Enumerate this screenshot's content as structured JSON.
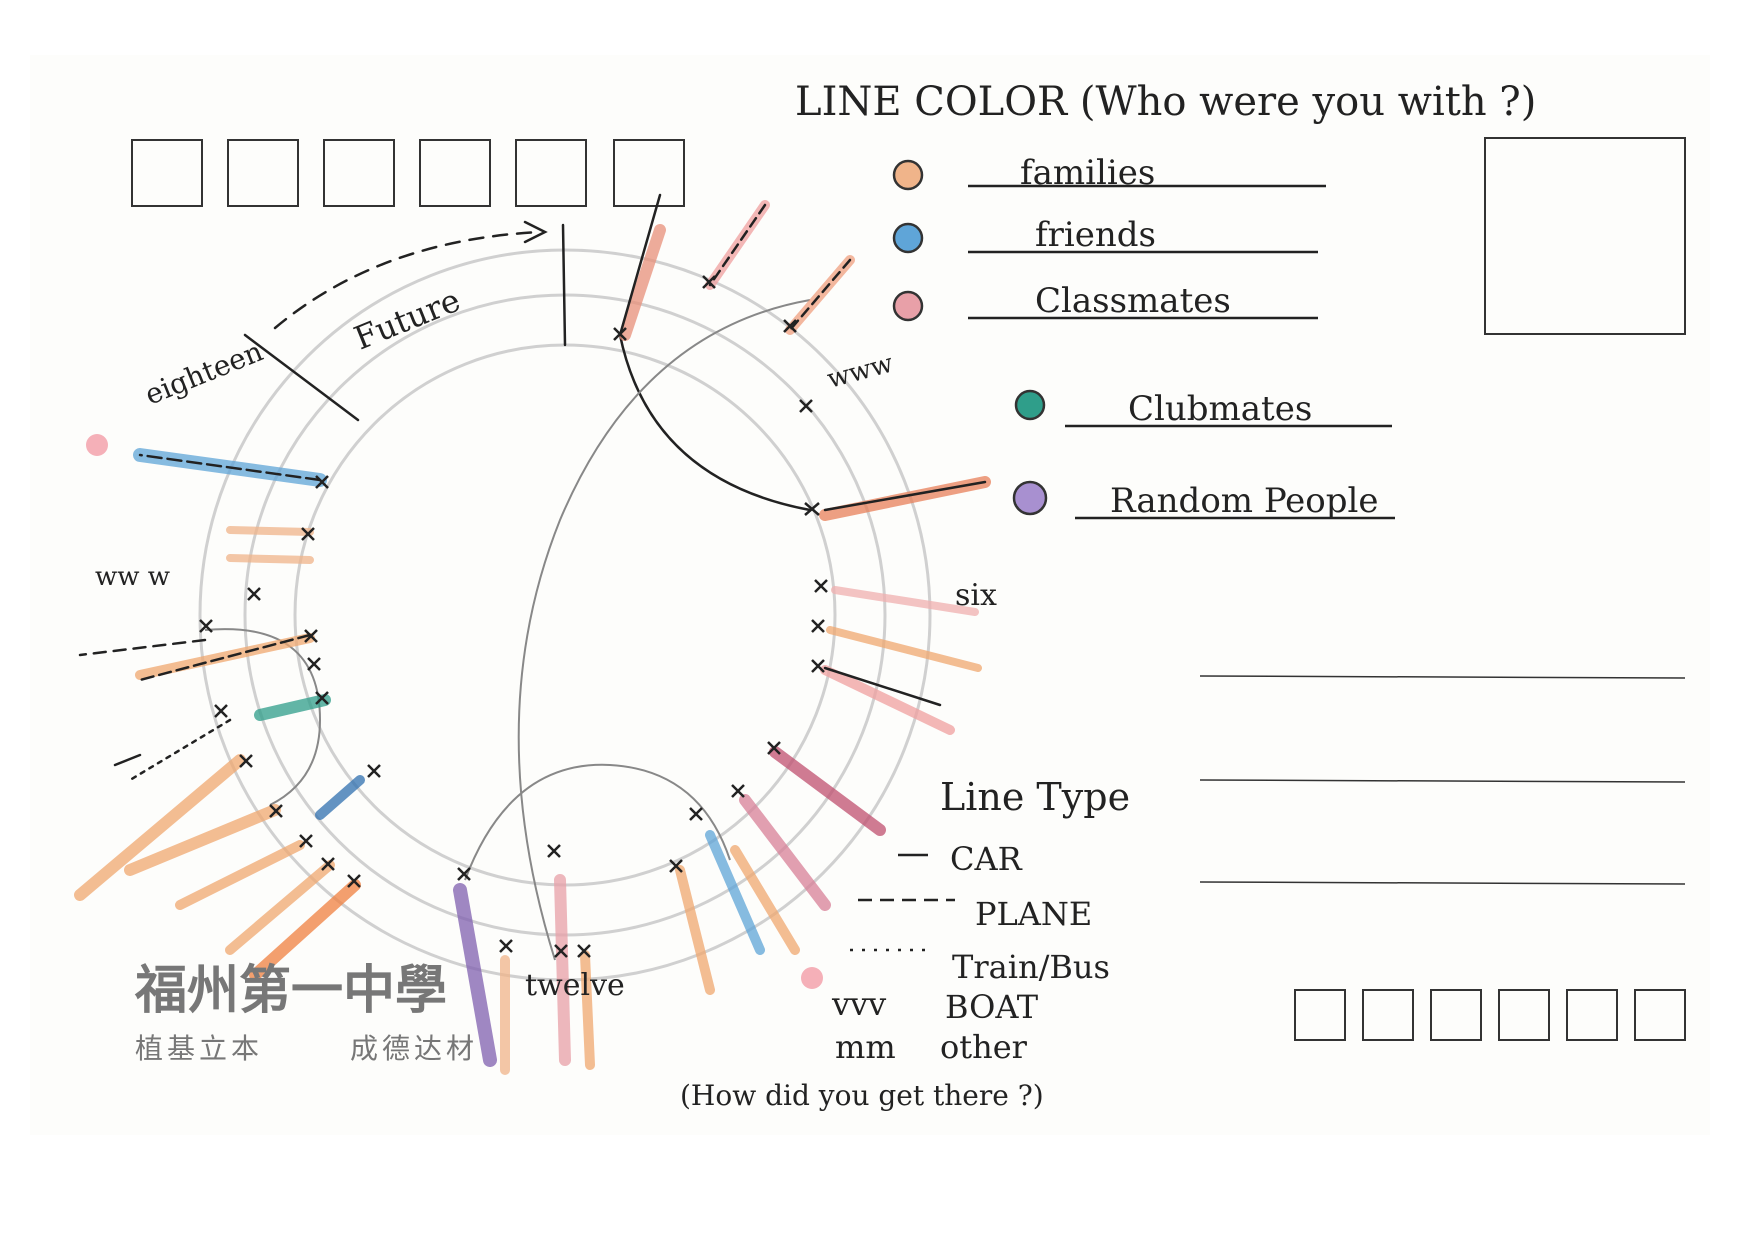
{
  "title": "LINE COLOR (Who were you with ?)",
  "legend_color": {
    "items": [
      {
        "label": "families",
        "color": "#f0b48a"
      },
      {
        "label": "friends",
        "color": "#5fa5d8"
      },
      {
        "label": "Classmates",
        "color": "#e8a0a8"
      },
      {
        "label": "Clubmates",
        "color": "#2f9e8a"
      },
      {
        "label": "Random People",
        "color": "#a890d0"
      }
    ]
  },
  "legend_type": {
    "title": "Line Type",
    "items": [
      {
        "symbol": "—",
        "label": "CAR"
      },
      {
        "symbol": "----",
        "label": "PLANE"
      },
      {
        "symbol": "....",
        "label": "Train/Bus"
      },
      {
        "symbol": "vvv",
        "label": "BOAT"
      },
      {
        "symbol": "mm",
        "label": "other"
      }
    ],
    "question": "(How did you get there ?)"
  },
  "timeline": {
    "future": "Future",
    "eighteen": "eighteen",
    "six": "six",
    "twelve": "twelve",
    "www_left": "ww w",
    "www_top": "www"
  },
  "school": {
    "name": "福州第一中學",
    "motto_left": "植基立本",
    "motto_right": "成德达材"
  }
}
